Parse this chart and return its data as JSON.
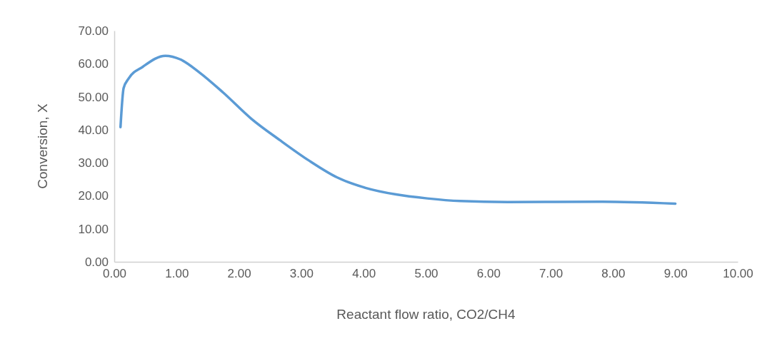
{
  "chart_data": {
    "type": "line",
    "xlabel": "Reactant flow ratio, CO2/CH4",
    "ylabel": "Conversion, X",
    "xlim": [
      0,
      10
    ],
    "xticks": [
      {
        "value": 0,
        "label": "0.00"
      },
      {
        "value": 1,
        "label": "1.00"
      },
      {
        "value": 2,
        "label": "2.00"
      },
      {
        "value": 3,
        "label": "3.00"
      },
      {
        "value": 4,
        "label": "4.00"
      },
      {
        "value": 5,
        "label": "5.00"
      },
      {
        "value": 6,
        "label": "6.00"
      },
      {
        "value": 7,
        "label": "7.00"
      },
      {
        "value": 8,
        "label": "8.00"
      },
      {
        "value": 9,
        "label": "9.00"
      },
      {
        "value": 10,
        "label": "10.00"
      }
    ],
    "ylim": [
      0,
      70
    ],
    "yticks": [
      {
        "value": 0,
        "label": "0.00"
      },
      {
        "value": 10,
        "label": "10.00"
      },
      {
        "value": 20,
        "label": "20.00"
      },
      {
        "value": 30,
        "label": "30.00"
      },
      {
        "value": 40,
        "label": "40.00"
      },
      {
        "value": 50,
        "label": "50.00"
      },
      {
        "value": 60,
        "label": "60.00"
      },
      {
        "value": 70,
        "label": "70.00"
      }
    ],
    "grid": false,
    "series": [
      {
        "color": "#5b9bd5",
        "x": [
          0.1,
          0.15,
          0.23,
          0.46,
          0.82,
          1.06,
          1.37,
          1.75,
          2.2,
          2.66,
          3.12,
          3.57,
          4.03,
          4.52,
          5.02,
          5.55,
          6.31,
          7.83,
          9.0
        ],
        "values": [
          40.8,
          52.6,
          55.5,
          59.1,
          62.4,
          61.3,
          57.3,
          51.2,
          43.3,
          36.8,
          30.7,
          25.6,
          22.4,
          20.4,
          19.2,
          18.4,
          18.1,
          18.2,
          17.6
        ]
      }
    ]
  }
}
